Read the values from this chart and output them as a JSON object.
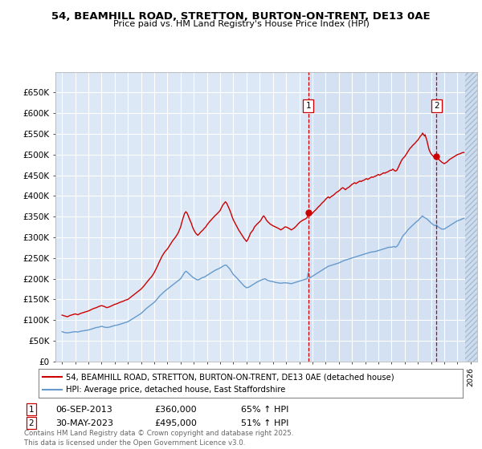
{
  "title": "54, BEAMHILL ROAD, STRETTON, BURTON-ON-TRENT, DE13 0AE",
  "subtitle": "Price paid vs. HM Land Registry's House Price Index (HPI)",
  "plot_bg": "#dce8f5",
  "plot_bg_shaded": "#c8daf0",
  "red_color": "#cc0000",
  "blue_color": "#6699cc",
  "ylim": [
    0,
    700000
  ],
  "yticks": [
    0,
    50000,
    100000,
    150000,
    200000,
    250000,
    300000,
    350000,
    400000,
    450000,
    500000,
    550000,
    600000,
    650000
  ],
  "xmin": 1994.5,
  "xmax": 2026.5,
  "sale1_date": 2013.68,
  "sale1_price": 360000,
  "sale2_date": 2023.42,
  "sale2_price": 495000,
  "legend1": "54, BEAMHILL ROAD, STRETTON, BURTON-ON-TRENT, DE13 0AE (detached house)",
  "legend2": "HPI: Average price, detached house, East Staffordshire",
  "note1_date": "06-SEP-2013",
  "note1_price": "£360,000",
  "note1_hpi": "65% ↑ HPI",
  "note2_date": "30-MAY-2023",
  "note2_price": "£495,000",
  "note2_hpi": "51% ↑ HPI",
  "footer": "Contains HM Land Registry data © Crown copyright and database right 2025.\nThis data is licensed under the Open Government Licence v3.0."
}
